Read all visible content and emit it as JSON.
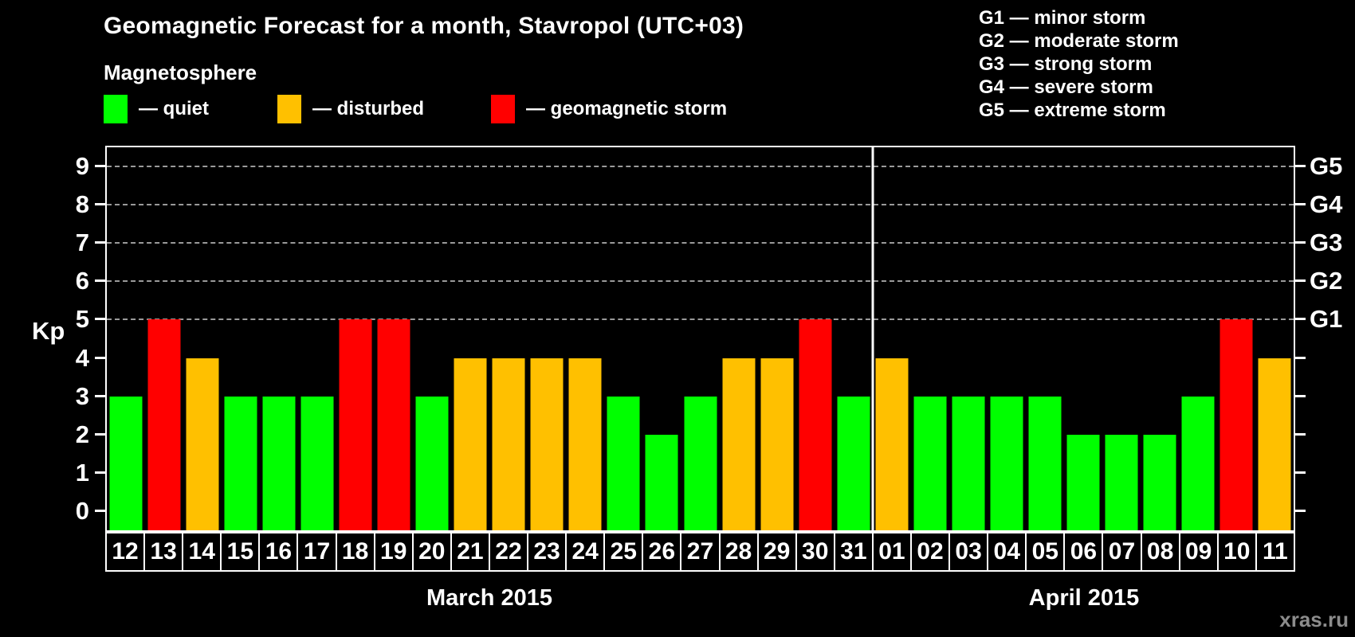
{
  "title": "Geomagnetic Forecast for a month, Stavropol (UTC+03)",
  "subtitle": "Magnetosphere",
  "legend": {
    "items": [
      {
        "status": "quiet",
        "label": "— quiet"
      },
      {
        "status": "disturbed",
        "label": "— disturbed"
      },
      {
        "status": "storm",
        "label": "— geomagnetic storm"
      }
    ]
  },
  "g_scale_legend": [
    "G1 — minor storm",
    "G2 — moderate storm",
    "G3 — strong storm",
    "G4 — severe storm",
    "G5 — extreme storm"
  ],
  "colors": {
    "quiet": "#00ff00",
    "disturbed": "#ffc000",
    "storm": "#ff0000",
    "axis": "#ffffff",
    "grid": "#9a9a9a",
    "background": "#000000",
    "watermark": "#8c8c8c"
  },
  "watermark": "xras.ru",
  "chart_data": {
    "type": "bar",
    "title": "Geomagnetic Forecast for a month, Stavropol (UTC+03)",
    "xlabel": "",
    "ylabel": "Kp",
    "ylim": [
      -0.5,
      9.5
    ],
    "y_ticks": [
      0,
      1,
      2,
      3,
      4,
      5,
      6,
      7,
      8,
      9
    ],
    "gridlines": [
      5,
      6,
      7,
      8,
      9
    ],
    "grid": "horizontal dashed at storm levels only",
    "legend_position": "top-left and top-right, outside plot",
    "right_axis": [
      {
        "kp": 5,
        "label": "G1"
      },
      {
        "kp": 6,
        "label": "G2"
      },
      {
        "kp": 7,
        "label": "G3"
      },
      {
        "kp": 8,
        "label": "G4"
      },
      {
        "kp": 9,
        "label": "G5"
      }
    ],
    "months": [
      {
        "label": "March 2015",
        "days": [
          {
            "day": "12",
            "kp": 3,
            "state": "quiet"
          },
          {
            "day": "13",
            "kp": 5,
            "state": "storm"
          },
          {
            "day": "14",
            "kp": 4,
            "state": "disturbed"
          },
          {
            "day": "15",
            "kp": 3,
            "state": "quiet"
          },
          {
            "day": "16",
            "kp": 3,
            "state": "quiet"
          },
          {
            "day": "17",
            "kp": 3,
            "state": "quiet"
          },
          {
            "day": "18",
            "kp": 5,
            "state": "storm"
          },
          {
            "day": "19",
            "kp": 5,
            "state": "storm"
          },
          {
            "day": "20",
            "kp": 3,
            "state": "quiet"
          },
          {
            "day": "21",
            "kp": 4,
            "state": "disturbed"
          },
          {
            "day": "22",
            "kp": 4,
            "state": "disturbed"
          },
          {
            "day": "23",
            "kp": 4,
            "state": "disturbed"
          },
          {
            "day": "24",
            "kp": 4,
            "state": "disturbed"
          },
          {
            "day": "25",
            "kp": 3,
            "state": "quiet"
          },
          {
            "day": "26",
            "kp": 2,
            "state": "quiet"
          },
          {
            "day": "27",
            "kp": 3,
            "state": "quiet"
          },
          {
            "day": "28",
            "kp": 4,
            "state": "disturbed"
          },
          {
            "day": "29",
            "kp": 4,
            "state": "disturbed"
          },
          {
            "day": "30",
            "kp": 5,
            "state": "storm"
          },
          {
            "day": "31",
            "kp": 3,
            "state": "quiet"
          }
        ]
      },
      {
        "label": "April 2015",
        "days": [
          {
            "day": "01",
            "kp": 4,
            "state": "disturbed"
          },
          {
            "day": "02",
            "kp": 3,
            "state": "quiet"
          },
          {
            "day": "03",
            "kp": 3,
            "state": "quiet"
          },
          {
            "day": "04",
            "kp": 3,
            "state": "quiet"
          },
          {
            "day": "05",
            "kp": 3,
            "state": "quiet"
          },
          {
            "day": "06",
            "kp": 2,
            "state": "quiet"
          },
          {
            "day": "07",
            "kp": 2,
            "state": "quiet"
          },
          {
            "day": "08",
            "kp": 2,
            "state": "quiet"
          },
          {
            "day": "09",
            "kp": 3,
            "state": "quiet"
          },
          {
            "day": "10",
            "kp": 5,
            "state": "storm"
          },
          {
            "day": "11",
            "kp": 4,
            "state": "disturbed"
          }
        ]
      }
    ]
  }
}
